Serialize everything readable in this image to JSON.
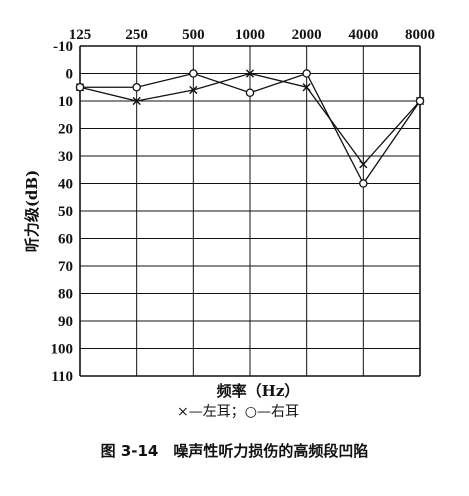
{
  "caption": "图 3-14　噪声性听力损伤的高频段凹陷",
  "chart_data": {
    "type": "line",
    "x_ticks": [
      "125",
      "250",
      "500",
      "1000",
      "2000",
      "4000",
      "8000"
    ],
    "y_ticks": [
      "-10",
      "0",
      "10",
      "20",
      "30",
      "40",
      "50",
      "60",
      "70",
      "80",
      "90",
      "100",
      "110"
    ],
    "ylim": [
      -10,
      110
    ],
    "y_inverted": true,
    "x_scale": "log2",
    "grid": true,
    "xlabel": "频率（Hz）",
    "ylabel": "听力级(dB)",
    "legend_text": "×—左耳；○—右耳",
    "series": [
      {
        "name": "左耳",
        "marker": "x",
        "x": [
          125,
          250,
          500,
          1000,
          2000,
          4000,
          8000
        ],
        "values": [
          5,
          10,
          6,
          0,
          5,
          33,
          10
        ]
      },
      {
        "name": "右耳",
        "marker": "o",
        "x": [
          125,
          250,
          500,
          1000,
          2000,
          4000,
          8000
        ],
        "values": [
          5,
          5,
          0,
          7,
          0,
          40,
          10
        ]
      }
    ],
    "colors": {
      "line": "#111111",
      "grid": "#111111"
    }
  }
}
